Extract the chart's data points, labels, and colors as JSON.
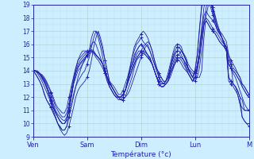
{
  "xlabel": "Température (°c)",
  "bg_color": "#cceeff",
  "line_color": "#2222aa",
  "grid_major_color": "#aacccc",
  "grid_minor_color": "#bbdddd",
  "ylim": [
    9,
    19
  ],
  "yticks": [
    9,
    10,
    11,
    12,
    13,
    14,
    15,
    16,
    17,
    18,
    19
  ],
  "day_labels": [
    "Ven",
    "Sam",
    "Dim",
    "Lun",
    "M"
  ],
  "day_positions": [
    0,
    24,
    48,
    72,
    96
  ],
  "num_points": 97,
  "series": [
    [
      14.0,
      14.0,
      13.8,
      13.5,
      13.2,
      12.8,
      12.4,
      12.0,
      11.5,
      11.0,
      10.5,
      10.0,
      9.6,
      9.3,
      9.1,
      9.3,
      9.8,
      10.5,
      11.2,
      12.0,
      12.5,
      12.8,
      13.0,
      13.2,
      13.5,
      14.0,
      14.8,
      15.8,
      16.5,
      17.0,
      16.5,
      15.8,
      14.8,
      14.0,
      13.2,
      12.8,
      12.5,
      12.2,
      12.0,
      11.8,
      11.8,
      12.0,
      12.2,
      12.5,
      13.0,
      13.5,
      14.0,
      14.5,
      15.0,
      15.5,
      15.8,
      16.0,
      15.5,
      15.0,
      14.5,
      14.0,
      13.5,
      13.2,
      13.0,
      13.0,
      13.2,
      13.5,
      14.0,
      14.5,
      15.0,
      15.3,
      15.5,
      15.3,
      15.0,
      14.5,
      14.2,
      14.0,
      13.8,
      13.5,
      13.5,
      14.0,
      16.5,
      18.2,
      19.0,
      19.2,
      18.8,
      18.0,
      17.5,
      17.0,
      16.5,
      16.2,
      15.8,
      13.5,
      13.2,
      13.0,
      12.8,
      12.5,
      12.0,
      10.5,
      10.2,
      10.0,
      10.0
    ],
    [
      14.0,
      13.8,
      13.5,
      13.2,
      12.8,
      12.2,
      11.8,
      11.5,
      11.2,
      10.8,
      10.4,
      10.0,
      9.7,
      9.5,
      9.5,
      9.8,
      10.5,
      11.3,
      12.0,
      12.8,
      13.2,
      13.5,
      13.8,
      14.0,
      14.5,
      15.0,
      15.8,
      16.5,
      17.0,
      16.8,
      16.2,
      15.5,
      14.8,
      14.0,
      13.2,
      12.8,
      12.5,
      12.2,
      12.0,
      11.8,
      11.8,
      12.0,
      12.5,
      13.0,
      13.5,
      14.2,
      14.8,
      15.2,
      15.5,
      15.8,
      16.0,
      16.2,
      16.0,
      15.5,
      14.8,
      14.2,
      13.8,
      13.5,
      13.2,
      13.2,
      13.5,
      14.0,
      14.8,
      15.3,
      15.5,
      15.8,
      15.5,
      15.2,
      14.8,
      14.2,
      13.8,
      13.5,
      13.2,
      13.5,
      14.2,
      15.5,
      17.5,
      18.8,
      19.5,
      19.2,
      18.8,
      18.2,
      17.5,
      17.0,
      16.5,
      16.0,
      15.5,
      13.2,
      13.0,
      12.8,
      12.5,
      12.2,
      11.5,
      10.5,
      10.2,
      10.0,
      9.8
    ],
    [
      14.0,
      13.8,
      13.5,
      13.2,
      12.8,
      12.3,
      11.8,
      11.5,
      11.2,
      10.8,
      10.5,
      10.0,
      9.8,
      9.5,
      9.5,
      9.8,
      10.5,
      11.3,
      12.2,
      12.8,
      13.5,
      14.0,
      14.5,
      14.8,
      15.2,
      15.5,
      16.5,
      17.0,
      17.0,
      16.5,
      15.8,
      15.0,
      14.2,
      13.5,
      12.8,
      12.5,
      12.2,
      12.0,
      11.8,
      11.8,
      12.0,
      12.5,
      13.2,
      14.0,
      15.0,
      15.8,
      16.2,
      16.5,
      16.8,
      17.0,
      16.8,
      16.5,
      16.0,
      15.5,
      14.8,
      14.2,
      13.8,
      13.5,
      13.2,
      13.2,
      13.8,
      14.5,
      15.2,
      15.8,
      16.0,
      16.0,
      15.8,
      15.2,
      14.8,
      14.2,
      13.8,
      13.5,
      14.0,
      15.2,
      17.2,
      19.0,
      19.8,
      20.0,
      19.8,
      19.2,
      18.5,
      17.8,
      17.2,
      16.8,
      16.5,
      16.0,
      15.5,
      13.5,
      13.2,
      13.0,
      12.8,
      12.2,
      11.5,
      11.2,
      11.0,
      11.0,
      11.0
    ],
    [
      14.0,
      14.0,
      14.0,
      13.8,
      13.5,
      13.2,
      12.8,
      12.2,
      11.8,
      11.2,
      10.8,
      10.5,
      10.2,
      10.0,
      10.0,
      10.2,
      11.0,
      12.0,
      13.0,
      13.5,
      14.0,
      14.2,
      14.5,
      14.8,
      15.2,
      15.5,
      16.0,
      16.2,
      16.0,
      15.5,
      15.0,
      14.5,
      13.8,
      13.2,
      12.8,
      12.5,
      12.2,
      12.0,
      12.0,
      12.0,
      12.2,
      12.5,
      13.2,
      14.0,
      14.5,
      15.0,
      15.5,
      15.8,
      16.0,
      15.8,
      15.5,
      15.2,
      14.8,
      14.5,
      14.0,
      13.5,
      13.2,
      13.0,
      13.0,
      13.2,
      13.5,
      14.2,
      14.8,
      15.2,
      15.5,
      15.5,
      15.2,
      14.8,
      14.2,
      13.8,
      13.5,
      13.2,
      13.5,
      14.0,
      15.2,
      17.2,
      18.8,
      19.5,
      19.2,
      18.8,
      18.2,
      17.5,
      17.0,
      16.8,
      16.5,
      16.0,
      15.8,
      15.2,
      14.5,
      13.0,
      12.8,
      12.5,
      12.0,
      11.8,
      11.0,
      11.0,
      11.0
    ],
    [
      14.0,
      14.0,
      13.9,
      13.7,
      13.4,
      13.1,
      12.7,
      12.3,
      11.8,
      11.3,
      10.9,
      10.5,
      10.2,
      10.0,
      10.0,
      10.3,
      11.0,
      12.0,
      13.0,
      13.8,
      14.3,
      14.6,
      14.8,
      15.0,
      15.2,
      15.4,
      15.6,
      15.5,
      15.2,
      15.0,
      14.8,
      14.5,
      14.0,
      13.5,
      13.0,
      12.8,
      12.5,
      12.2,
      12.0,
      12.0,
      12.2,
      12.5,
      13.0,
      13.5,
      14.0,
      14.5,
      15.0,
      15.2,
      15.4,
      15.5,
      15.4,
      15.2,
      15.0,
      14.5,
      14.0,
      13.5,
      13.0,
      12.8,
      12.8,
      13.0,
      13.2,
      13.8,
      14.2,
      14.5,
      14.8,
      15.0,
      15.0,
      14.8,
      14.5,
      14.2,
      14.0,
      13.8,
      13.8,
      14.2,
      15.0,
      16.5,
      17.5,
      17.8,
      17.5,
      17.2,
      17.0,
      16.8,
      16.5,
      16.2,
      16.0,
      15.8,
      15.5,
      14.5,
      14.2,
      14.0,
      13.8,
      13.5,
      13.2,
      12.8,
      12.5,
      12.2,
      12.0
    ],
    [
      14.0,
      14.0,
      13.9,
      13.8,
      13.5,
      13.2,
      12.8,
      12.2,
      11.7,
      11.2,
      10.8,
      10.5,
      10.2,
      10.0,
      10.0,
      10.3,
      11.0,
      12.0,
      13.0,
      13.8,
      14.2,
      14.5,
      14.7,
      14.9,
      15.1,
      15.3,
      15.4,
      15.3,
      15.0,
      14.8,
      14.5,
      14.2,
      13.8,
      13.2,
      12.8,
      12.5,
      12.2,
      12.0,
      12.0,
      12.0,
      12.2,
      12.5,
      13.0,
      13.5,
      14.0,
      14.5,
      14.8,
      15.0,
      15.2,
      15.3,
      15.2,
      15.0,
      14.8,
      14.5,
      14.0,
      13.5,
      13.0,
      12.8,
      12.8,
      13.0,
      13.2,
      13.8,
      14.2,
      14.5,
      14.8,
      14.8,
      14.5,
      14.2,
      14.0,
      13.8,
      13.5,
      13.2,
      13.5,
      14.0,
      15.0,
      16.5,
      17.5,
      17.8,
      17.5,
      17.2,
      17.0,
      16.8,
      16.5,
      16.2,
      16.0,
      15.8,
      15.5,
      14.5,
      14.2,
      14.0,
      13.8,
      13.5,
      13.2,
      12.8,
      12.5,
      12.2,
      12.0
    ],
    [
      14.0,
      14.0,
      13.9,
      13.8,
      13.6,
      13.3,
      13.0,
      12.5,
      12.0,
      11.5,
      11.0,
      10.7,
      10.5,
      10.3,
      10.2,
      10.5,
      11.2,
      12.2,
      13.2,
      14.0,
      14.5,
      14.8,
      15.0,
      15.2,
      15.4,
      15.5,
      15.5,
      15.4,
      15.2,
      15.0,
      14.8,
      14.5,
      14.0,
      13.5,
      13.0,
      12.8,
      12.5,
      12.2,
      12.0,
      12.0,
      12.2,
      12.5,
      13.0,
      13.8,
      14.2,
      14.8,
      15.2,
      15.5,
      15.5,
      15.5,
      15.2,
      15.0,
      14.8,
      14.5,
      14.0,
      13.5,
      13.0,
      12.8,
      12.8,
      13.0,
      13.2,
      13.8,
      14.2,
      14.8,
      15.0,
      15.0,
      14.8,
      14.5,
      14.2,
      13.8,
      13.5,
      13.2,
      13.5,
      14.2,
      15.2,
      16.8,
      17.8,
      18.0,
      17.8,
      17.5,
      17.2,
      17.0,
      16.8,
      16.5,
      16.2,
      16.0,
      15.8,
      14.8,
      14.5,
      14.2,
      14.0,
      13.8,
      13.5,
      13.0,
      12.8,
      12.5,
      12.2
    ],
    [
      14.0,
      14.0,
      13.9,
      13.8,
      13.6,
      13.4,
      13.1,
      12.8,
      12.3,
      11.8,
      11.3,
      11.0,
      10.7,
      10.5,
      10.5,
      10.8,
      11.5,
      12.5,
      13.5,
      14.2,
      14.8,
      15.0,
      15.2,
      15.4,
      15.5,
      15.5,
      15.5,
      15.4,
      15.2,
      15.0,
      14.8,
      14.5,
      14.0,
      13.5,
      13.0,
      12.8,
      12.5,
      12.2,
      12.0,
      12.0,
      12.2,
      12.5,
      13.2,
      14.0,
      14.5,
      15.2,
      15.5,
      15.8,
      16.0,
      15.8,
      15.5,
      15.2,
      15.0,
      14.5,
      14.0,
      13.5,
      13.2,
      13.0,
      13.0,
      13.2,
      13.5,
      14.0,
      14.5,
      15.0,
      15.2,
      15.2,
      15.0,
      14.8,
      14.5,
      14.0,
      13.8,
      13.5,
      13.8,
      14.5,
      15.8,
      17.2,
      18.2,
      18.5,
      18.2,
      18.0,
      17.8,
      17.5,
      17.2,
      17.0,
      16.8,
      16.5,
      16.2,
      15.2,
      14.8,
      14.5,
      14.2,
      13.8,
      13.5,
      13.0,
      12.8,
      12.5,
      12.2
    ],
    [
      14.0,
      14.0,
      13.9,
      13.8,
      13.7,
      13.5,
      13.2,
      12.8,
      12.4,
      12.0,
      11.5,
      11.2,
      11.0,
      10.8,
      10.8,
      11.2,
      12.0,
      12.8,
      13.5,
      14.2,
      14.8,
      15.2,
      15.5,
      15.5,
      15.5,
      15.5,
      15.5,
      15.4,
      15.2,
      15.0,
      14.8,
      14.5,
      14.0,
      13.5,
      13.2,
      13.0,
      12.8,
      12.5,
      12.2,
      12.2,
      12.5,
      13.0,
      13.5,
      14.2,
      15.0,
      15.5,
      16.0,
      16.2,
      16.5,
      16.2,
      16.0,
      15.8,
      15.5,
      15.0,
      14.5,
      14.0,
      13.5,
      13.2,
      13.0,
      13.2,
      13.5,
      14.2,
      15.0,
      15.5,
      15.8,
      15.8,
      15.5,
      15.2,
      14.8,
      14.2,
      13.8,
      13.5,
      14.0,
      15.2,
      17.0,
      18.8,
      19.5,
      20.0,
      19.8,
      19.2,
      18.5,
      17.8,
      17.2,
      16.8,
      16.5,
      16.0,
      15.5,
      14.5,
      14.2,
      13.8,
      13.5,
      13.0,
      12.5,
      12.0,
      11.5,
      11.2,
      11.0
    ]
  ]
}
